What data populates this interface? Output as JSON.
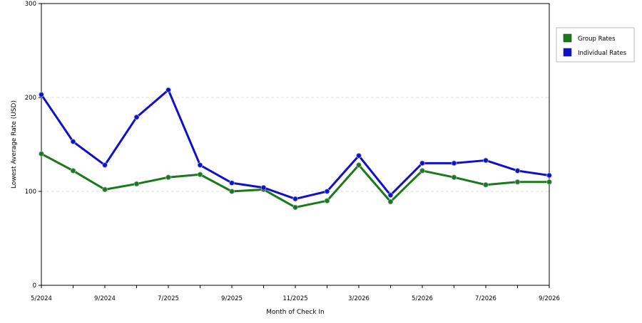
{
  "chart_data": {
    "type": "line",
    "xlabel": "Month of Check In",
    "ylabel": "Lowest Average Rate (USD)",
    "ylim": [
      0,
      300
    ],
    "yticks": [
      0,
      100,
      200,
      300
    ],
    "grid": "horizontal dashed",
    "legend_position": "right",
    "x_tick_labels": [
      "5/2024",
      "9/2024",
      "7/2025",
      "9/2025",
      "11/2025",
      "3/2026",
      "5/2026",
      "7/2026",
      "9/2026"
    ],
    "x_tick_indices": [
      0,
      2,
      4,
      6,
      8,
      10,
      12,
      14,
      16
    ],
    "series": [
      {
        "name": "Group Rates",
        "color": "#1a7a1a",
        "values": [
          140,
          122,
          102,
          108,
          115,
          118,
          100,
          102,
          83,
          90,
          128,
          89,
          122,
          115,
          107,
          110,
          110
        ]
      },
      {
        "name": "Individual Rates",
        "color": "#1010cc",
        "values": [
          203,
          153,
          128,
          179,
          208,
          128,
          109,
          104,
          92,
          100,
          138,
          96,
          130,
          130,
          133,
          122,
          117
        ]
      }
    ]
  }
}
